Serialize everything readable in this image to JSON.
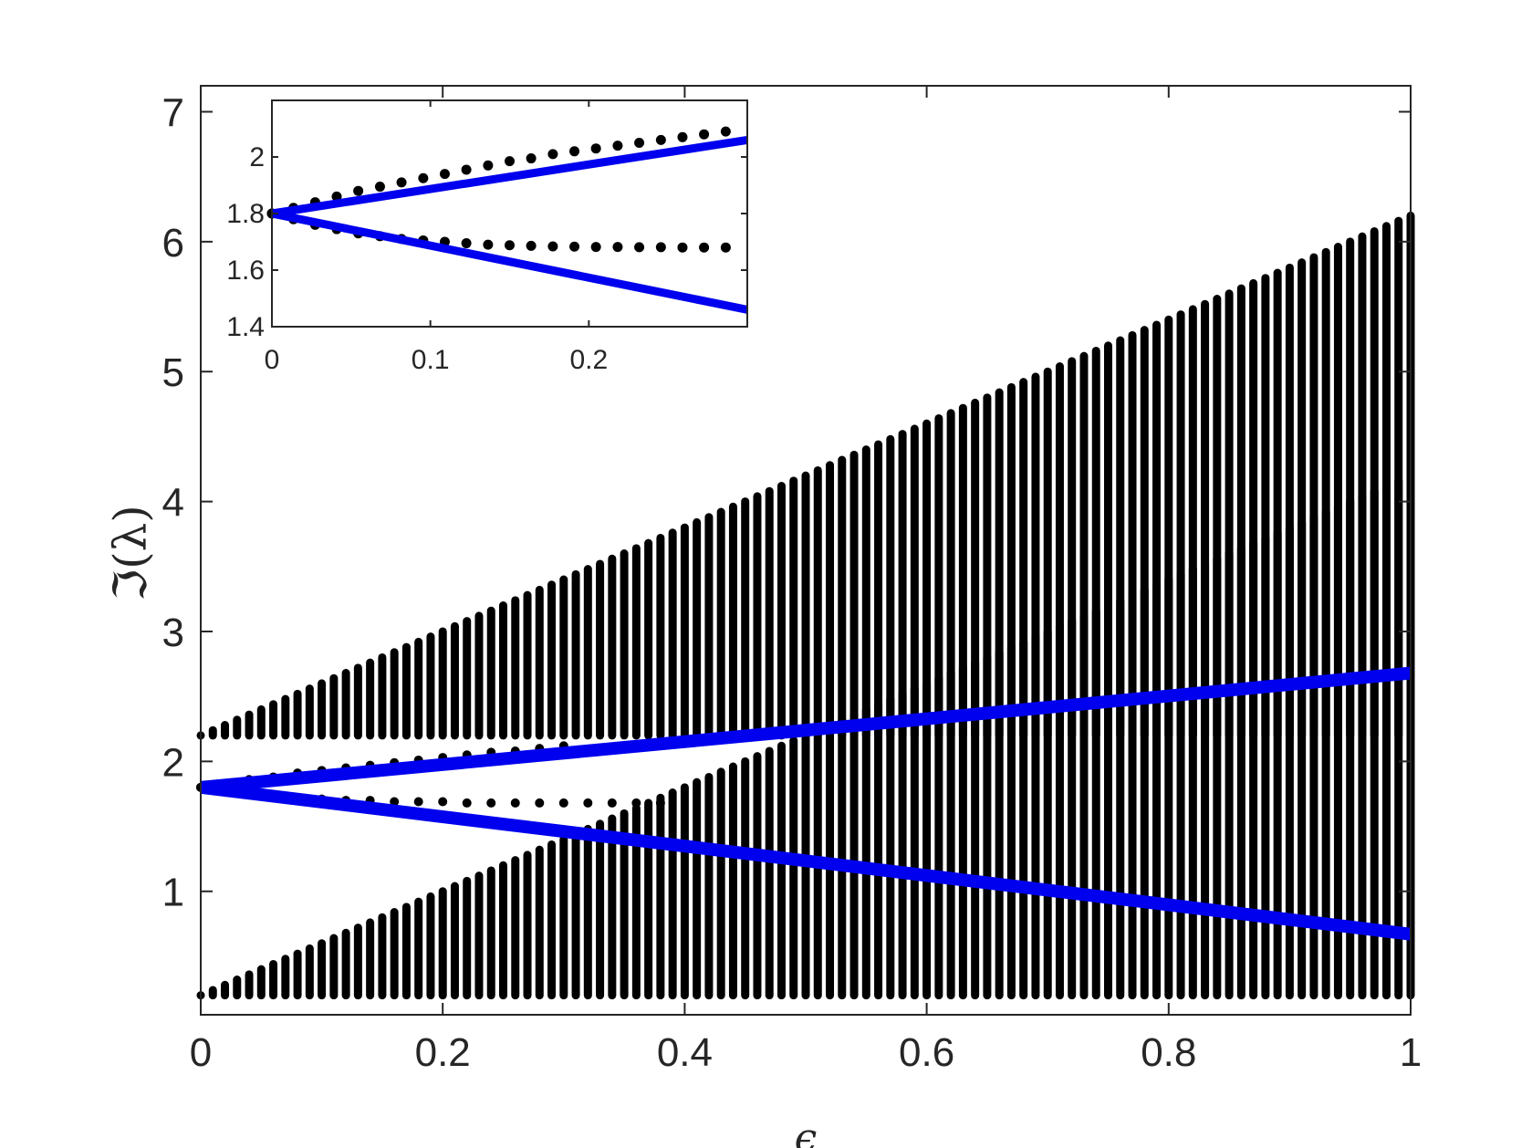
{
  "chart_data": [
    {
      "id": "main",
      "type": "scatter",
      "xlabel": "ϵ",
      "ylabel": "ℑ(λ)",
      "xlim": [
        0,
        1
      ],
      "ylim": [
        0.05,
        7.2
      ],
      "xticks": [
        0,
        0.2,
        0.4,
        0.6,
        0.8,
        1
      ],
      "xtick_labels": [
        "0",
        "0.2",
        "0.4",
        "0.6",
        "0.8",
        "1"
      ],
      "yticks": [
        1,
        2,
        3,
        4,
        5,
        6,
        7
      ],
      "ytick_labels": [
        "1",
        "2",
        "3",
        "4",
        "5",
        "6",
        "7"
      ],
      "grid": false,
      "series": [
        {
          "kind": "continuous-spectrum-upper-band",
          "color": "#000000",
          "eps_range": [
            0,
            1
          ],
          "lower_edge": 2.2,
          "upper_edge": {
            "at_eps_0": 2.2,
            "at_eps_1": 6.2
          }
        },
        {
          "kind": "continuous-spectrum-lower-band",
          "color": "#000000",
          "eps_range": [
            0,
            1
          ],
          "lower_edge": 0.2,
          "upper_edge": {
            "at_eps_0": 0.2,
            "at_eps_1": 4.2
          }
        },
        {
          "kind": "discrete-eigenvalue-upper",
          "color": "#000000",
          "x": [
            0,
            0.02,
            0.04,
            0.06,
            0.08,
            0.1,
            0.12,
            0.14,
            0.16,
            0.18,
            0.2,
            0.22,
            0.24,
            0.26,
            0.28,
            0.3
          ],
          "y": [
            1.8,
            1.83,
            1.86,
            1.88,
            1.91,
            1.93,
            1.95,
            1.97,
            1.99,
            2.01,
            2.03,
            2.05,
            2.07,
            2.08,
            2.1,
            2.12
          ]
        },
        {
          "kind": "discrete-eigenvalue-lower",
          "color": "#000000",
          "x": [
            0,
            0.02,
            0.04,
            0.06,
            0.08,
            0.1,
            0.12,
            0.14,
            0.16,
            0.18,
            0.2,
            0.22,
            0.24,
            0.26,
            0.28,
            0.3,
            0.32,
            0.34,
            0.36,
            0.38
          ],
          "y": [
            1.8,
            1.77,
            1.75,
            1.73,
            1.72,
            1.71,
            1.7,
            1.7,
            1.69,
            1.69,
            1.69,
            1.68,
            1.68,
            1.68,
            1.68,
            1.68,
            1.68,
            1.68,
            1.68,
            1.68
          ]
        },
        {
          "kind": "asymptotic-upper",
          "color": "#0000ee",
          "x": [
            0,
            1
          ],
          "y": [
            1.8,
            2.68
          ]
        },
        {
          "kind": "asymptotic-lower",
          "color": "#0000ee",
          "x": [
            0,
            1
          ],
          "y": [
            1.8,
            0.67
          ]
        }
      ]
    },
    {
      "id": "inset",
      "type": "scatter",
      "xlim": [
        0,
        0.3
      ],
      "ylim": [
        1.4,
        2.2
      ],
      "xticks": [
        0,
        0.1,
        0.2
      ],
      "xtick_labels": [
        "0",
        "0.1",
        "0.2"
      ],
      "yticks": [
        1.4,
        1.6,
        1.8,
        2
      ],
      "ytick_labels": [
        "1.4",
        "1.6",
        "1.8",
        "2"
      ],
      "grid": false,
      "series": [
        {
          "kind": "discrete-eigenvalue-upper",
          "color": "#000000",
          "x": [
            0,
            0.0136,
            0.0273,
            0.0409,
            0.0545,
            0.0682,
            0.0818,
            0.0955,
            0.1091,
            0.1227,
            0.1364,
            0.15,
            0.1636,
            0.1773,
            0.1909,
            0.2045,
            0.2182,
            0.2318,
            0.2455,
            0.2591,
            0.2727,
            0.2864
          ],
          "y": [
            1.8,
            1.82,
            1.84,
            1.86,
            1.88,
            1.895,
            1.91,
            1.925,
            1.94,
            1.955,
            1.97,
            1.985,
            1.995,
            2.01,
            2.02,
            2.03,
            2.04,
            2.05,
            2.06,
            2.07,
            2.08,
            2.09
          ]
        },
        {
          "kind": "discrete-eigenvalue-lower",
          "color": "#000000",
          "x": [
            0,
            0.0136,
            0.0273,
            0.0409,
            0.0545,
            0.0682,
            0.0818,
            0.0955,
            0.1091,
            0.1227,
            0.1364,
            0.15,
            0.1636,
            0.1773,
            0.1909,
            0.2045,
            0.2182,
            0.2318,
            0.2455,
            0.2591,
            0.2727,
            0.2864
          ],
          "y": [
            1.8,
            1.78,
            1.76,
            1.745,
            1.73,
            1.72,
            1.71,
            1.705,
            1.7,
            1.695,
            1.69,
            1.688,
            1.686,
            1.684,
            1.683,
            1.682,
            1.682,
            1.681,
            1.681,
            1.68,
            1.68,
            1.68
          ]
        },
        {
          "kind": "asymptotic-upper",
          "color": "#0000ee",
          "x": [
            0,
            0.3
          ],
          "y": [
            1.8,
            2.06
          ]
        },
        {
          "kind": "asymptotic-lower",
          "color": "#0000ee",
          "x": [
            0,
            0.3
          ],
          "y": [
            1.8,
            1.46
          ]
        }
      ]
    }
  ]
}
